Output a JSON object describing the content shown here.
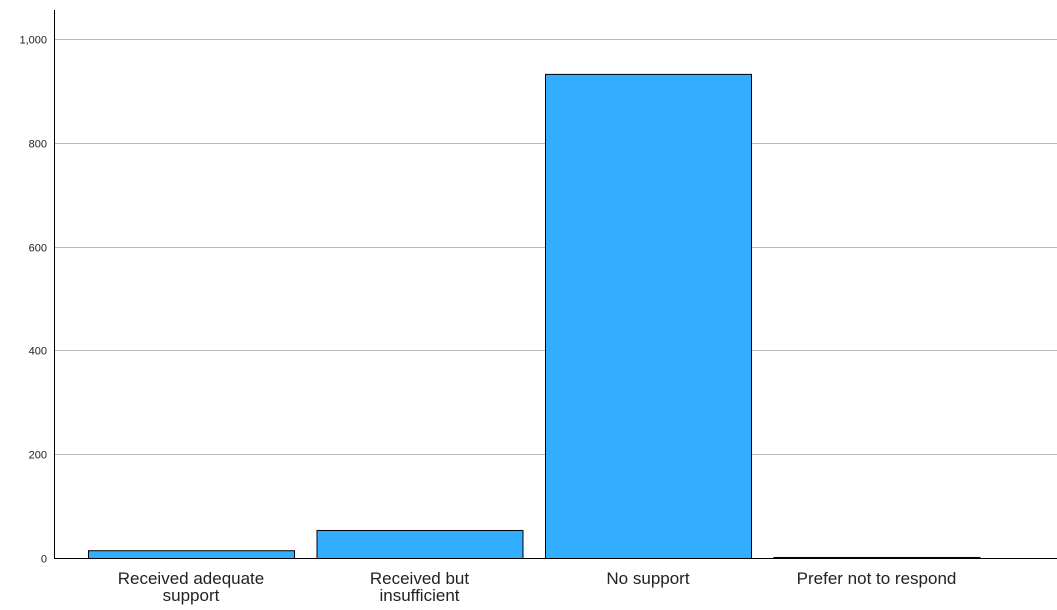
{
  "chart_data": {
    "type": "bar",
    "categories": [
      [
        "Received adequate",
        "support"
      ],
      [
        "Received but",
        "insufficient"
      ],
      [
        "No support"
      ],
      [
        "Prefer not to respond"
      ]
    ],
    "values": [
      15,
      54,
      933,
      2
    ],
    "yticks": [
      0,
      200,
      400,
      600,
      800,
      1000
    ],
    "ytick_labels": [
      "0",
      "200",
      "400",
      "600",
      "800",
      "1,000"
    ],
    "ylim": [
      0,
      1050
    ],
    "grid": true,
    "bar_color": "#33adff",
    "title": "",
    "xlabel": "",
    "ylabel": ""
  }
}
